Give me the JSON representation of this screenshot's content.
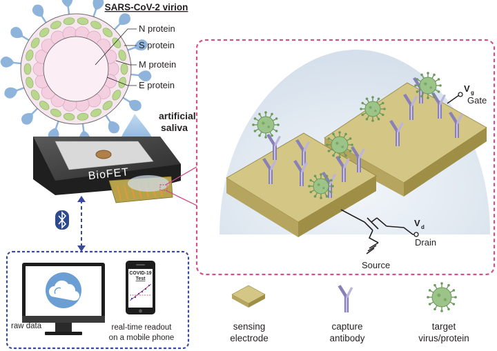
{
  "virion": {
    "title": "SARS-CoV-2 virion",
    "labels": [
      "N protein",
      "S protein",
      "M protein",
      "E protein"
    ]
  },
  "saliva": {
    "line1": "artificial",
    "line2": "saliva"
  },
  "chip": {
    "label": "BioFET"
  },
  "circuit": {
    "gate_symbol": "V",
    "gate_sub": "g",
    "gate_label": "Gate",
    "drain_symbol": "V",
    "drain_sub": "d",
    "drain_label": "Drain",
    "source_label": "Source"
  },
  "readout": {
    "monitor_label": "raw data",
    "phone_title_1": "COVID-19",
    "phone_title_2": "Test",
    "phone_caption_1": "real-time readout",
    "phone_caption_2": "on a mobile phone"
  },
  "legend": [
    {
      "line1": "sensing",
      "line2": "electrode"
    },
    {
      "line1": "capture",
      "line2": "antibody"
    },
    {
      "line1": "target",
      "line2": "virus/protein"
    }
  ],
  "colors": {
    "spike_blue": "#8fb4dc",
    "envelope_pink": "#f3cfe0",
    "membrane_green": "#b9d88e",
    "electrode": "#d4c786",
    "antibody": "#8a80b8",
    "virus_green": "#9cc488",
    "magenta_dash": "#d0508a",
    "navy_dash": "#3a4a9a",
    "bluetooth": "#2c4a8c"
  }
}
